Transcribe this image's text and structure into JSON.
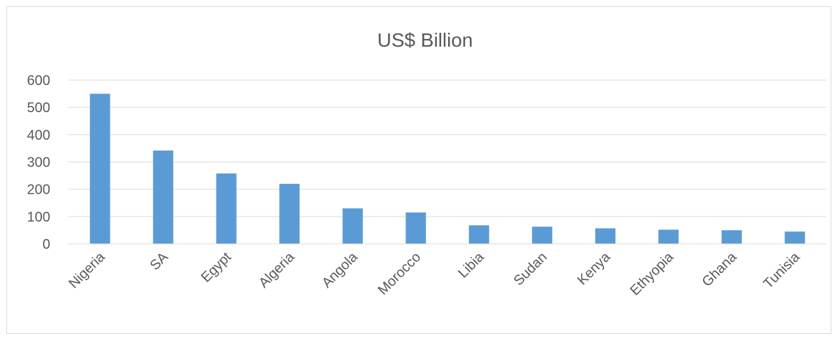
{
  "chart_data": {
    "type": "bar",
    "title": "US$ Billion",
    "xlabel": "",
    "ylabel": "",
    "categories": [
      "Nigeria",
      "SA",
      "Egypt",
      "Algeria",
      "Angola",
      "Morocco",
      "Libia",
      "Sudan",
      "Kenya",
      "Ethyopia",
      "Ghana",
      "Tunisia"
    ],
    "values": [
      550,
      342,
      258,
      220,
      130,
      115,
      68,
      63,
      57,
      52,
      50,
      45
    ],
    "ylim": [
      0,
      600
    ],
    "yticks": [
      "0",
      "100",
      "200",
      "300",
      "400",
      "500",
      "600"
    ],
    "grid": true,
    "legend": "none",
    "bar_color": "#5b9bd5"
  }
}
